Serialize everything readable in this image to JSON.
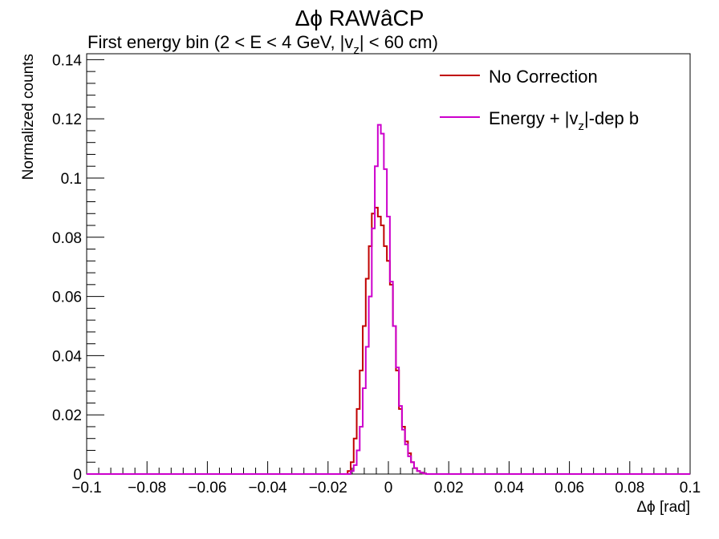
{
  "chart_data": {
    "type": "line",
    "title": "Δϕ RAWâCP",
    "subtitle_parts": {
      "a": "First energy bin (2 < E < 4 GeV, |v",
      "sub": "z",
      "b": "| < 60 cm)"
    },
    "xlabel": "Δϕ  [rad]",
    "ylabel": "Normalized counts",
    "xlim": [
      -0.1,
      0.1
    ],
    "ylim": [
      0,
      0.142
    ],
    "xticks": [
      "−0.1",
      "−0.08",
      "−0.06",
      "−0.04",
      "−0.02",
      "0",
      "0.02",
      "0.04",
      "0.06",
      "0.08",
      "0.1"
    ],
    "yticks": [
      "0",
      "0.02",
      "0.04",
      "0.06",
      "0.08",
      "0.1",
      "0.12",
      "0.14"
    ],
    "legend_position": "top-right",
    "legend": [
      {
        "label": "No Correction",
        "color": "#c00000"
      },
      {
        "label_a": "Energy + |v",
        "label_sub": "z",
        "label_b": "|-dep b",
        "color": "#cc00cc"
      }
    ],
    "bin_width": 0.001,
    "series": [
      {
        "name": "No Correction",
        "color": "#c00000",
        "x": [
          -0.013,
          -0.012,
          -0.011,
          -0.01,
          -0.009,
          -0.008,
          -0.007,
          -0.006,
          -0.005,
          -0.004,
          -0.003,
          -0.002,
          -0.001,
          0.0,
          0.001,
          0.002,
          0.003,
          0.004,
          0.005,
          0.006,
          0.007,
          0.008,
          0.009,
          0.01,
          0.011,
          0.012
        ],
        "y": [
          0.001,
          0.004,
          0.012,
          0.022,
          0.035,
          0.05,
          0.066,
          0.077,
          0.088,
          0.09,
          0.087,
          0.084,
          0.077,
          0.072,
          0.064,
          0.05,
          0.035,
          0.022,
          0.016,
          0.011,
          0.007,
          0.004,
          0.002,
          0.001,
          0.0005,
          0.0002
        ]
      },
      {
        "name": "Energy + |vz|-dep b",
        "color": "#cc00cc",
        "x": [
          -0.012,
          -0.011,
          -0.01,
          -0.009,
          -0.008,
          -0.007,
          -0.006,
          -0.005,
          -0.004,
          -0.003,
          -0.002,
          -0.001,
          0.0,
          0.001,
          0.002,
          0.003,
          0.004,
          0.005,
          0.006,
          0.007,
          0.008,
          0.009,
          0.01,
          0.011,
          0.012
        ],
        "y": [
          0.001,
          0.003,
          0.008,
          0.016,
          0.029,
          0.043,
          0.06,
          0.083,
          0.104,
          0.118,
          0.115,
          0.103,
          0.087,
          0.065,
          0.05,
          0.036,
          0.023,
          0.015,
          0.01,
          0.006,
          0.004,
          0.002,
          0.001,
          0.0005,
          0.0002
        ]
      }
    ]
  }
}
